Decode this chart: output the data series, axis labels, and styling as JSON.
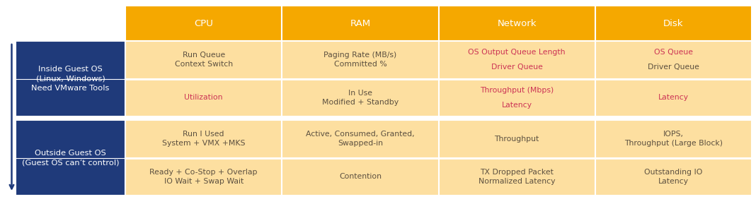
{
  "header_bg": "#F5A800",
  "header_text_color": "#FFFFFF",
  "left_bg": "#1F3A7A",
  "left_text_color": "#FFFFFF",
  "cell_bg": "#FDDFA0",
  "separator_color": "#FFFFFF",
  "highlight_color": "#CC3355",
  "normal_text_color": "#5C5040",
  "headers": [
    "CPU",
    "RAM",
    "Network",
    "Disk"
  ],
  "row_labels": [
    "Inside Guest OS\n(Linux, Windows)\nNeed VMware Tools",
    "Outside Guest OS\n(Guest OS can’t control)"
  ],
  "cells": {
    "inside_row1": [
      "Run Queue\nContext Switch",
      "Paging Rate (MB/s)\nCommitted %",
      "OS Output Queue Length\nDriver Queue",
      "OS Queue\nDriver Queue"
    ],
    "inside_row2": [
      "Utilization",
      "In Use\nModified + Standby",
      "Throughput (Mbps)\nLatency",
      "Latency"
    ],
    "outside_row1": [
      "Run I Used\nSystem + VMX +MKS",
      "Active, Consumed, Granted,\nSwapped-in",
      "Throughput",
      "IOPS,\nThroughput (Large Block)"
    ],
    "outside_row2": [
      "Ready + Co-Stop + Overlap\nIO Wait + Swap Wait",
      "Contention",
      "TX Dropped Packet\nNormalized Latency",
      "Outstanding IO\nLatency"
    ]
  },
  "red_highlights": {
    "inside_row1": {
      "2": [
        0,
        1
      ],
      "3": [
        0
      ]
    },
    "inside_row2": {
      "0": [
        0
      ],
      "2": [
        0,
        1
      ],
      "3": [
        0
      ]
    },
    "outside_row1": {},
    "outside_row2": {}
  },
  "figsize": [
    10.68,
    2.89
  ],
  "dpi": 100
}
